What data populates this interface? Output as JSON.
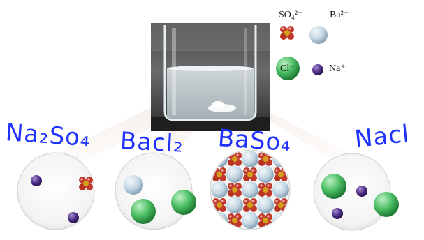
{
  "legend": {
    "sulfate_label": "SO₄²⁻",
    "barium_label": "Ba²⁺",
    "chloride_label": "Cl⁻",
    "sodium_label": "Na⁺"
  },
  "handwritten": {
    "label_1": "Na₂So₄",
    "label_2": "Bacl₂",
    "label_3": "BaSo₄",
    "label_4": "Nacl"
  },
  "colors": {
    "sulfate": "#c0392b",
    "sulfate_center": "#d4a017",
    "barium": "#c9dde9",
    "chloride": "#3fae5b",
    "sodium": "#5a3b8c",
    "ink": "#1f33ff"
  }
}
